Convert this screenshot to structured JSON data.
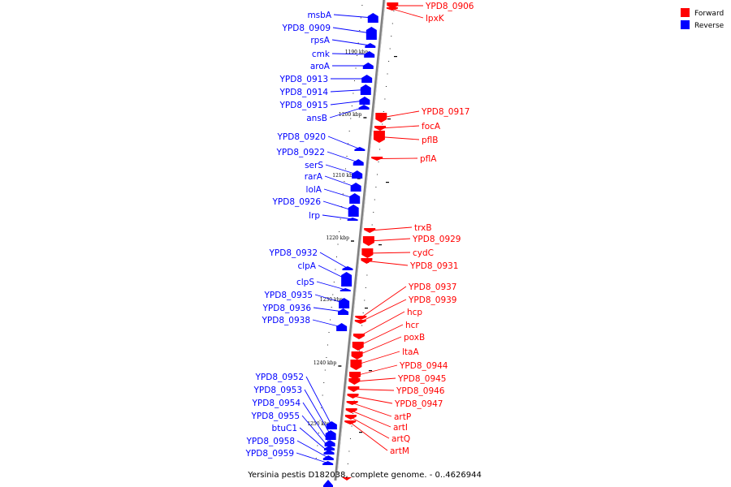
{
  "caption": "Yersinia pestis D182038, complete genome. - 0..4626944",
  "colors": {
    "forward": "#ff0000",
    "reverse": "#0000ff",
    "backbone": "#808080"
  },
  "legend": [
    {
      "label": "Forward",
      "color": "#ff0000"
    },
    {
      "label": "Reverse",
      "color": "#0000ff"
    }
  ],
  "scale_ticks": [
    "1190 kbp",
    "1200 kbp",
    "1210 kbp",
    "1220 kbp",
    "1230 kbp",
    "1240 kbp",
    "1250 kbp"
  ],
  "genes_reverse": [
    "msbA",
    "YPD8_0909",
    "rpsA",
    "cmk",
    "aroA",
    "YPD8_0913",
    "YPD8_0914",
    "YPD8_0915",
    "ansB",
    "YPD8_0920",
    "YPD8_0922",
    "serS",
    "rarA",
    "lolA",
    "YPD8_0926",
    "lrp",
    "YPD8_0932",
    "clpA",
    "clpS",
    "YPD8_0935",
    "YPD8_0936",
    "YPD8_0938",
    "YPD8_0952",
    "YPD8_0953",
    "YPD8_0954",
    "YPD8_0955",
    "btuC1",
    "YPD8_0958",
    "YPD8_0959"
  ],
  "genes_forward": [
    "YPD8_0906",
    "lpxK",
    "YPD8_0917",
    "focA",
    "pflB",
    "pflA",
    "trxB",
    "YPD8_0929",
    "cydC",
    "YPD8_0931",
    "YPD8_0937",
    "YPD8_0939",
    "hcp",
    "hcr",
    "poxB",
    "ltaA",
    "YPD8_0944",
    "YPD8_0945",
    "YPD8_0946",
    "YPD8_0947",
    "artP",
    "artI",
    "artQ",
    "artM"
  ]
}
